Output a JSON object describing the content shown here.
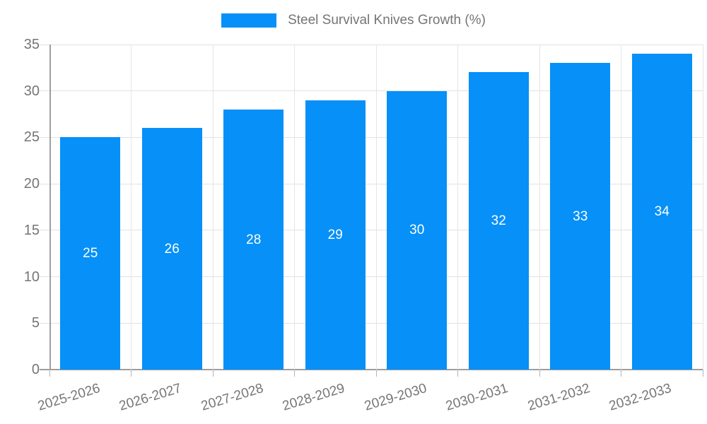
{
  "chart_data": {
    "type": "bar",
    "title": "Steel Survival Knives Growth (%)",
    "legend": {
      "position": "top",
      "label": "Steel Survival Knives Growth (%)"
    },
    "categories": [
      "2025-2026",
      "2026-2027",
      "2027-2028",
      "2028-2029",
      "2029-2030",
      "2030-2031",
      "2031-2032",
      "2032-2033"
    ],
    "values": [
      25,
      26,
      28,
      29,
      30,
      32,
      33,
      34
    ],
    "value_labels": [
      "25",
      "26",
      "28",
      "29",
      "30",
      "32",
      "33",
      "34"
    ],
    "xlabel": "",
    "ylabel": "",
    "ylim": [
      0,
      35
    ],
    "y_ticks": [
      0,
      5,
      10,
      15,
      20,
      25,
      30,
      35
    ],
    "grid": true,
    "colors": {
      "bar": "#0690f8",
      "value_label": "#ffffff",
      "axis_text": "#757575",
      "gridline": "#e2e2e2",
      "axis_line": "#9e9e9e"
    }
  }
}
